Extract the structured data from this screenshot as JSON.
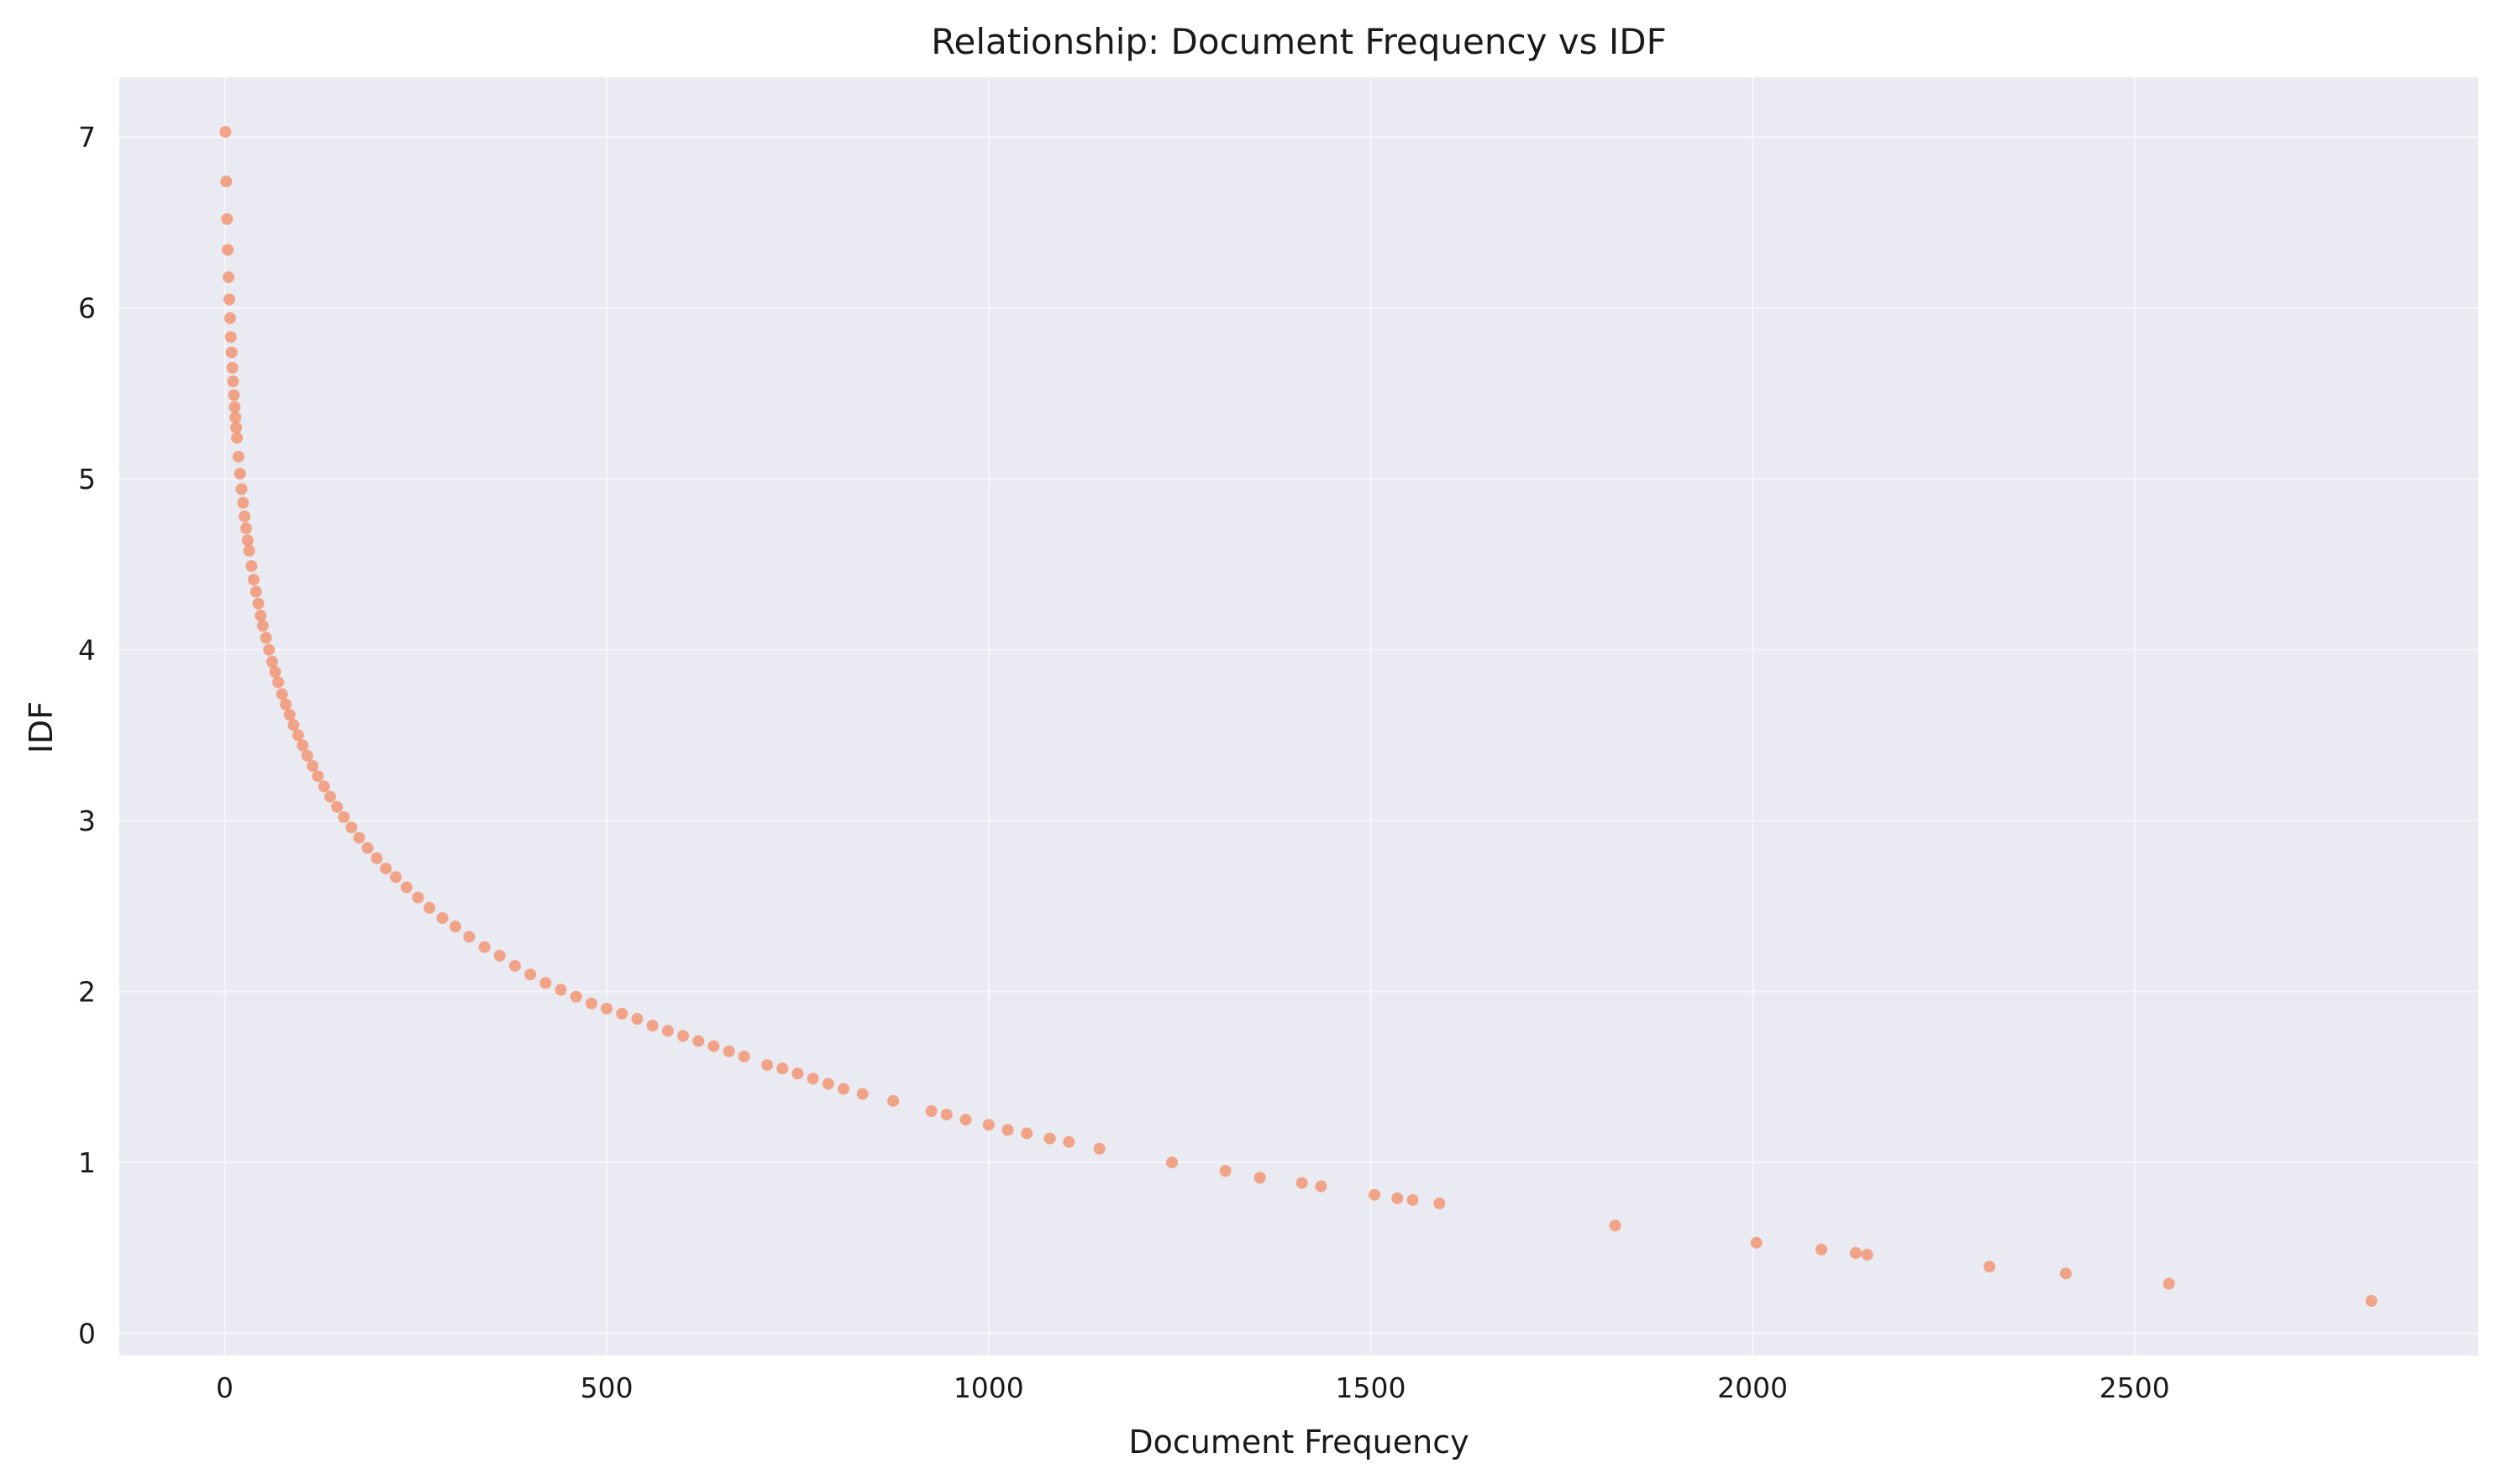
{
  "colors": {
    "background": "#ffffff",
    "plot_background": "#eaeaf2",
    "grid": "#ffffff",
    "marker": "#f4845a",
    "text": "#1a1a1a"
  },
  "chart_data": {
    "type": "scatter",
    "title": "Relationship: Document Frequency vs IDF",
    "xlabel": "Document Frequency",
    "ylabel": "IDF",
    "xlim": [
      -138,
      2950
    ],
    "ylim": [
      -0.13,
      7.35
    ],
    "x_ticks": [
      0,
      500,
      1000,
      1500,
      2000,
      2500
    ],
    "x_tick_labels": [
      "0",
      "500",
      "1000",
      "1500",
      "2000",
      "2500"
    ],
    "y_ticks": [
      0,
      1,
      2,
      3,
      4,
      5,
      6,
      7
    ],
    "y_tick_labels": [
      "0",
      "1",
      "2",
      "3",
      "4",
      "5",
      "6",
      "7"
    ],
    "grid": true,
    "legend": "none",
    "series": [
      {
        "points": [
          [
            1,
            7.03
          ],
          [
            2,
            6.74
          ],
          [
            3,
            6.52
          ],
          [
            4,
            6.34
          ],
          [
            5,
            6.18
          ],
          [
            6,
            6.05
          ],
          [
            7,
            5.94
          ],
          [
            8,
            5.83
          ],
          [
            9,
            5.74
          ],
          [
            10,
            5.65
          ],
          [
            11,
            5.57
          ],
          [
            12,
            5.49
          ],
          [
            13,
            5.42
          ],
          [
            14,
            5.36
          ],
          [
            15,
            5.3
          ],
          [
            16,
            5.24
          ],
          [
            18,
            5.13
          ],
          [
            20,
            5.03
          ],
          [
            22,
            4.94
          ],
          [
            24,
            4.86
          ],
          [
            26,
            4.78
          ],
          [
            28,
            4.71
          ],
          [
            30,
            4.64
          ],
          [
            32,
            4.58
          ],
          [
            35,
            4.49
          ],
          [
            38,
            4.41
          ],
          [
            41,
            4.34
          ],
          [
            44,
            4.27
          ],
          [
            47,
            4.2
          ],
          [
            50,
            4.14
          ],
          [
            54,
            4.07
          ],
          [
            58,
            4.0
          ],
          [
            62,
            3.93
          ],
          [
            66,
            3.87
          ],
          [
            70,
            3.81
          ],
          [
            75,
            3.74
          ],
          [
            80,
            3.68
          ],
          [
            85,
            3.62
          ],
          [
            90,
            3.56
          ],
          [
            96,
            3.5
          ],
          [
            102,
            3.44
          ],
          [
            108,
            3.38
          ],
          [
            115,
            3.32
          ],
          [
            122,
            3.26
          ],
          [
            130,
            3.2
          ],
          [
            138,
            3.14
          ],
          [
            147,
            3.08
          ],
          [
            156,
            3.02
          ],
          [
            166,
            2.96
          ],
          [
            176,
            2.9
          ],
          [
            187,
            2.84
          ],
          [
            199,
            2.78
          ],
          [
            211,
            2.72
          ],
          [
            224,
            2.67
          ],
          [
            238,
            2.61
          ],
          [
            253,
            2.55
          ],
          [
            268,
            2.49
          ],
          [
            285,
            2.43
          ],
          [
            302,
            2.38
          ],
          [
            320,
            2.32
          ],
          [
            340,
            2.26
          ],
          [
            360,
            2.21
          ],
          [
            380,
            2.15
          ],
          [
            400,
            2.1
          ],
          [
            420,
            2.05
          ],
          [
            440,
            2.01
          ],
          [
            460,
            1.97
          ],
          [
            480,
            1.93
          ],
          [
            500,
            1.9
          ],
          [
            520,
            1.87
          ],
          [
            540,
            1.84
          ],
          [
            560,
            1.8
          ],
          [
            580,
            1.77
          ],
          [
            600,
            1.74
          ],
          [
            620,
            1.71
          ],
          [
            640,
            1.68
          ],
          [
            660,
            1.65
          ],
          [
            680,
            1.62
          ],
          [
            710,
            1.57
          ],
          [
            730,
            1.55
          ],
          [
            750,
            1.52
          ],
          [
            770,
            1.49
          ],
          [
            790,
            1.46
          ],
          [
            810,
            1.43
          ],
          [
            835,
            1.4
          ],
          [
            875,
            1.36
          ],
          [
            925,
            1.3
          ],
          [
            945,
            1.28
          ],
          [
            970,
            1.25
          ],
          [
            1000,
            1.22
          ],
          [
            1025,
            1.19
          ],
          [
            1050,
            1.17
          ],
          [
            1080,
            1.14
          ],
          [
            1105,
            1.12
          ],
          [
            1145,
            1.08
          ],
          [
            1240,
            1.0
          ],
          [
            1310,
            0.95
          ],
          [
            1355,
            0.91
          ],
          [
            1410,
            0.88
          ],
          [
            1435,
            0.86
          ],
          [
            1505,
            0.81
          ],
          [
            1535,
            0.79
          ],
          [
            1555,
            0.78
          ],
          [
            1590,
            0.76
          ],
          [
            1820,
            0.63
          ],
          [
            2005,
            0.53
          ],
          [
            2090,
            0.49
          ],
          [
            2135,
            0.47
          ],
          [
            2150,
            0.46
          ],
          [
            2310,
            0.39
          ],
          [
            2410,
            0.35
          ],
          [
            2545,
            0.29
          ],
          [
            2810,
            0.19
          ]
        ]
      }
    ]
  }
}
